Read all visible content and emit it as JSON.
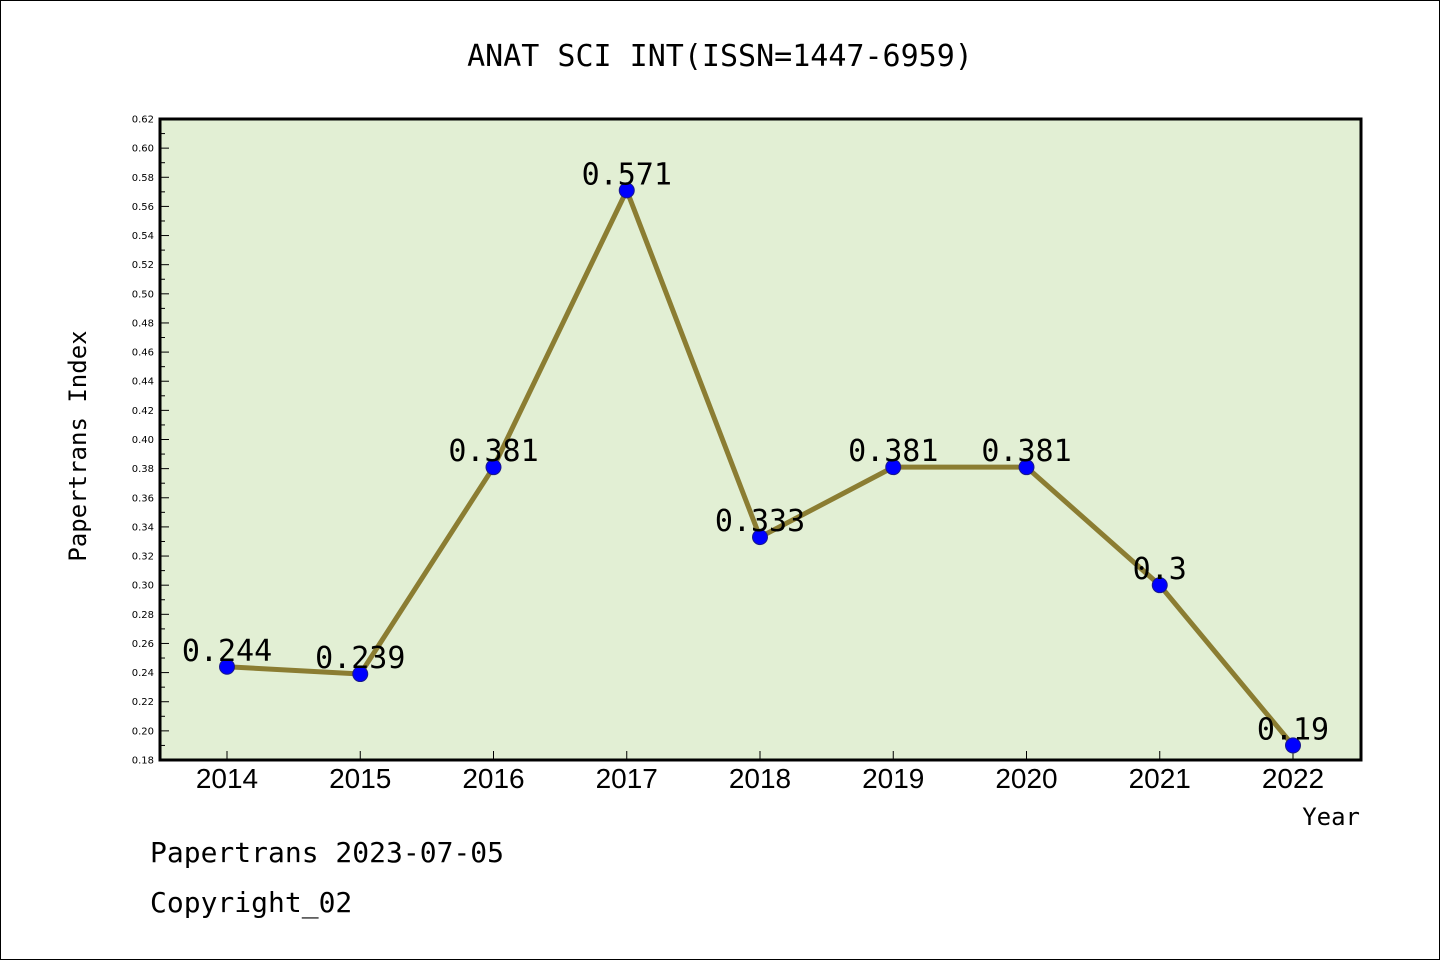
{
  "chart_data": {
    "type": "line",
    "title": "ANAT SCI INT(ISSN=1447-6959)",
    "xlabel": "Year",
    "ylabel": "Papertrans Index",
    "categories": [
      "2014",
      "2015",
      "2016",
      "2017",
      "2018",
      "2019",
      "2020",
      "2021",
      "2022"
    ],
    "series": [
      {
        "values": [
          0.244,
          0.239,
          0.381,
          0.571,
          0.333,
          0.381,
          0.381,
          0.3,
          0.19
        ],
        "labels": [
          "0.244",
          "0.239",
          "0.381",
          "0.571",
          "0.333",
          "0.381",
          "0.381",
          "0.3",
          "0.19"
        ]
      }
    ],
    "ylim": [
      0.18,
      0.62
    ],
    "yticks": [
      "0.18",
      "0.20",
      "0.22",
      "0.24",
      "0.26",
      "0.28",
      "0.30",
      "0.32",
      "0.34",
      "0.36",
      "0.38",
      "0.40",
      "0.42",
      "0.44",
      "0.46",
      "0.48",
      "0.50",
      "0.52",
      "0.54",
      "0.56",
      "0.58",
      "0.60",
      "0.62"
    ],
    "grid": false,
    "colors": {
      "plot_background": "#e2efd4",
      "line": "#8b7d32",
      "marker": "#0000ff"
    }
  },
  "footer": {
    "source": "Papertrans 2023-07-05",
    "copyright": "Copyright_02"
  }
}
